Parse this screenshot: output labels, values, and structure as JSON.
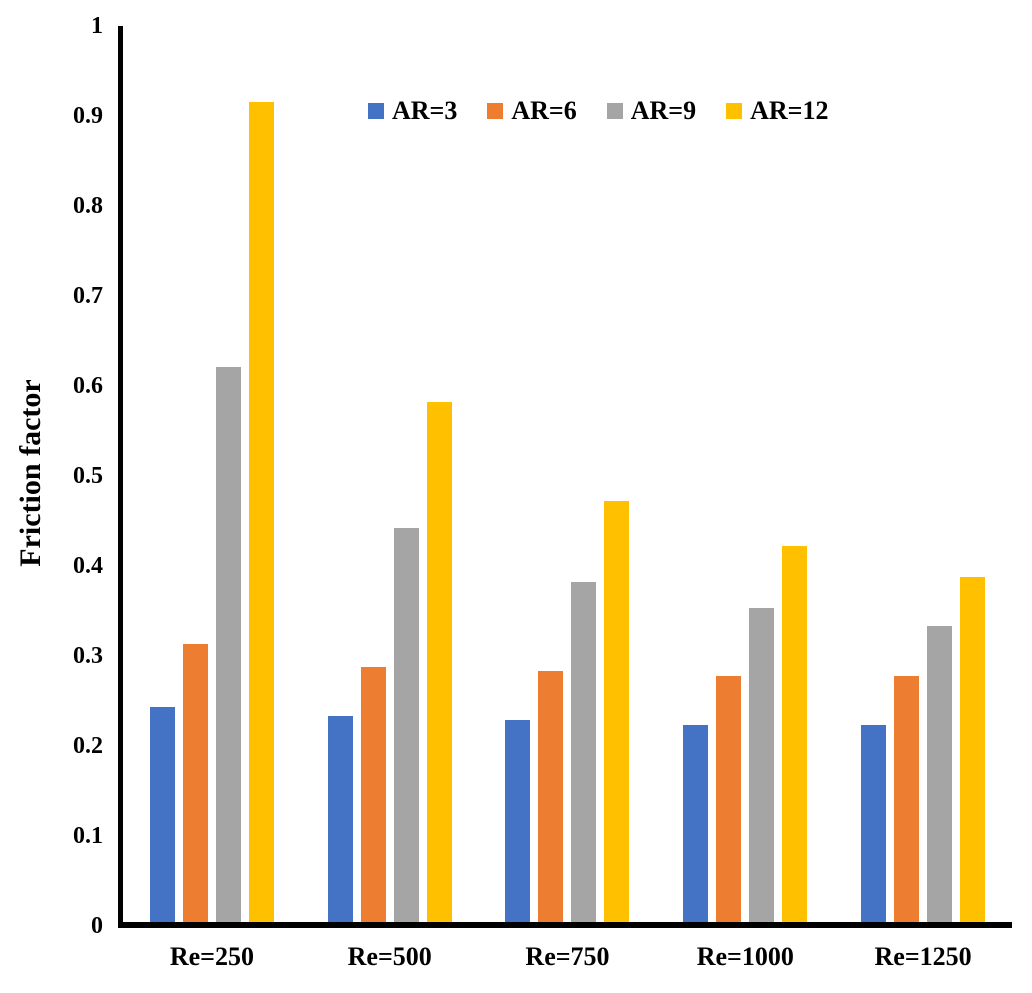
{
  "chart_data": {
    "type": "bar",
    "title": "",
    "xlabel": "",
    "ylabel": "Friction factor",
    "categories": [
      "Re=250",
      "Re=500",
      "Re=750",
      "Re=1000",
      "Re=1250"
    ],
    "series": [
      {
        "name": "AR=3",
        "color": "#4472C4",
        "values": [
          0.24,
          0.23,
          0.225,
          0.22,
          0.22
        ]
      },
      {
        "name": "AR=6",
        "color": "#ED7D31",
        "values": [
          0.31,
          0.285,
          0.28,
          0.275,
          0.275
        ]
      },
      {
        "name": "AR=9",
        "color": "#A5A5A5",
        "values": [
          0.62,
          0.44,
          0.38,
          0.35,
          0.33
        ]
      },
      {
        "name": "AR=12",
        "color": "#FFC000",
        "values": [
          0.915,
          0.58,
          0.47,
          0.42,
          0.385
        ]
      }
    ],
    "ylim": [
      0,
      1
    ],
    "ytick_step": 0.1,
    "ytick_labels": [
      "0",
      "0.1",
      "0.2",
      "0.3",
      "0.4",
      "0.5",
      "0.6",
      "0.7",
      "0.8",
      "0.9",
      "1"
    ],
    "grid": false,
    "legend_position": "top-center",
    "axis_color": "#000000",
    "background_color": "#ffffff"
  }
}
